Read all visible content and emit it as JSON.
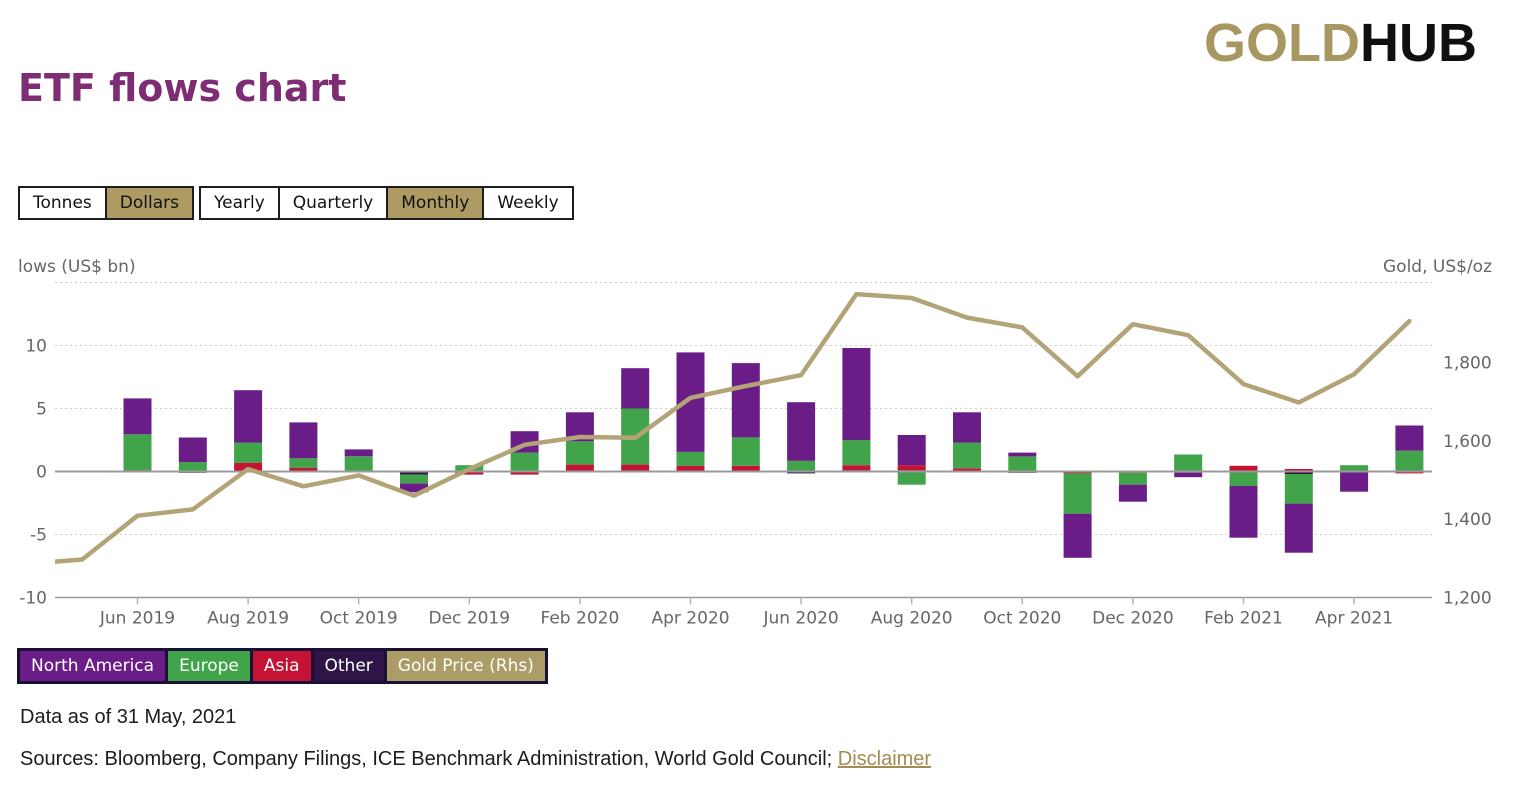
{
  "logo": {
    "gold": "GOLD",
    "hub": "HUB"
  },
  "page_title": "ETF flows chart",
  "toggles": {
    "unit": [
      {
        "label": "Tonnes",
        "selected": false
      },
      {
        "label": "Dollars",
        "selected": true
      }
    ],
    "period": [
      {
        "label": "Yearly",
        "selected": false
      },
      {
        "label": "Quarterly",
        "selected": false
      },
      {
        "label": "Monthly",
        "selected": true
      },
      {
        "label": "Weekly",
        "selected": false
      }
    ]
  },
  "legend": [
    {
      "label": "North America",
      "color": "#6A1D87"
    },
    {
      "label": "Europe",
      "color": "#41A34A"
    },
    {
      "label": "Asia",
      "color": "#C41334"
    },
    {
      "label": "Other",
      "color": "#2E1548"
    },
    {
      "label": "Gold Price (Rhs)",
      "color": "#AC9C66"
    }
  ],
  "footer": {
    "data_as_of": "Data as of 31 May, 2021",
    "sources": "Sources: Bloomberg, Company Filings, ICE Benchmark Administration, World Gold Council;",
    "disclaimer": "Disclaimer"
  },
  "colors": {
    "title": "#7E2C74",
    "logo_gold": "#A89760",
    "logo_hub": "#101010",
    "selected_toggle_bg": "#AD9B63",
    "axis_text": "#666666",
    "axis_title_text": "#555555",
    "gridline": "#cccccc",
    "zero_line": "#9A9A9A",
    "tick_mark": "#b5b5b5",
    "gold_line": "#B3A478"
  },
  "chart_data": {
    "type": "bar",
    "subtype": "stacked-columns-with-line",
    "unit": "US$ bn",
    "left_axis": {
      "title": "lows (US$ bn)",
      "ticks": [
        10,
        5,
        0,
        -5,
        -10
      ],
      "range": [
        -10,
        15
      ],
      "grid": "dotted"
    },
    "right_axis": {
      "title": "Gold, US$/oz",
      "tick_labels": [
        "1,800",
        "1,600",
        "1,400",
        "1,200"
      ],
      "tick_values": [
        1800,
        1600,
        1400,
        1200
      ],
      "range": [
        1200,
        2006
      ]
    },
    "categories": [
      "Jun 2019",
      "Jul 2019",
      "Aug 2019",
      "Sep 2019",
      "Oct 2019",
      "Nov 2019",
      "Dec 2019",
      "Jan 2020",
      "Feb 2020",
      "Mar 2020",
      "Apr 2020",
      "May 2020",
      "Jun 2020",
      "Jul 2020",
      "Aug 2020",
      "Sep 2020",
      "Oct 2020",
      "Nov 2020",
      "Dec 2020",
      "Jan 2021",
      "Feb 2021",
      "Mar 2021",
      "Apr 2021",
      "May 2021"
    ],
    "x_tick_indices": [
      0,
      2,
      4,
      6,
      8,
      10,
      12,
      14,
      16,
      18,
      20,
      22
    ],
    "stack_order": [
      "Other",
      "Asia",
      "Europe",
      "North America"
    ],
    "series": [
      {
        "name": "North America",
        "color": "#6A1D87",
        "values": [
          2.85,
          1.95,
          4.15,
          2.85,
          0.55,
          -0.7,
          0,
          1.7,
          2.3,
          3.2,
          7.9,
          5.9,
          4.65,
          7.3,
          2.4,
          2.4,
          0.3,
          -3.5,
          -1.35,
          -0.35,
          -4.1,
          -3.9,
          -1.6,
          2.0
        ]
      },
      {
        "name": "Europe",
        "color": "#41A34A",
        "values": [
          2.85,
          0.75,
          1.6,
          0.75,
          1.2,
          -0.7,
          0.5,
          1.5,
          1.85,
          4.45,
          1.1,
          2.25,
          0.85,
          2.0,
          -1.05,
          2.05,
          1.2,
          -3.2,
          -0.95,
          1.35,
          -1.15,
          -2.35,
          0.5,
          1.55
        ]
      },
      {
        "name": "Asia",
        "color": "#C41334",
        "values": [
          0.1,
          0,
          0.7,
          0.3,
          0,
          0,
          -0.25,
          -0.25,
          0.55,
          0.45,
          0.45,
          0.45,
          0,
          0.4,
          0.4,
          0.25,
          0,
          -0.15,
          -0.1,
          0,
          0.45,
          0.2,
          0,
          -0.15
        ]
      },
      {
        "name": "Other",
        "color": "#2E1548",
        "values": [
          0,
          -0.1,
          0,
          0,
          0,
          -0.25,
          0,
          0,
          0,
          0.1,
          0,
          0,
          -0.15,
          0.1,
          0.1,
          0,
          -0.1,
          0,
          0,
          -0.1,
          0,
          -0.2,
          0,
          0.1
        ]
      }
    ],
    "line_series": {
      "name": "Gold Price (Rhs)",
      "color": "#B3A478",
      "axis": "right",
      "x_offset_months": -2,
      "categories": [
        "Apr 2019",
        "May 2019",
        "Jun 2019",
        "Jul 2019",
        "Aug 2019",
        "Sep 2019",
        "Oct 2019",
        "Nov 2019",
        "Dec 2019",
        "Jan 2020",
        "Feb 2020",
        "Mar 2020",
        "Apr 2020",
        "May 2020",
        "Jun 2020",
        "Jul 2020",
        "Aug 2020",
        "Sep 2020",
        "Oct 2020",
        "Nov 2020",
        "Dec 2020",
        "Jan 2021",
        "Feb 2021",
        "Mar 2021",
        "Apr 2021",
        "May 2021"
      ],
      "values": [
        1286,
        1297,
        1409,
        1425,
        1528,
        1484,
        1512,
        1460,
        1528,
        1590,
        1610,
        1608,
        1710,
        1740,
        1768,
        1975,
        1965,
        1915,
        1890,
        1765,
        1898,
        1870,
        1745,
        1698,
        1770,
        1906
      ]
    }
  }
}
